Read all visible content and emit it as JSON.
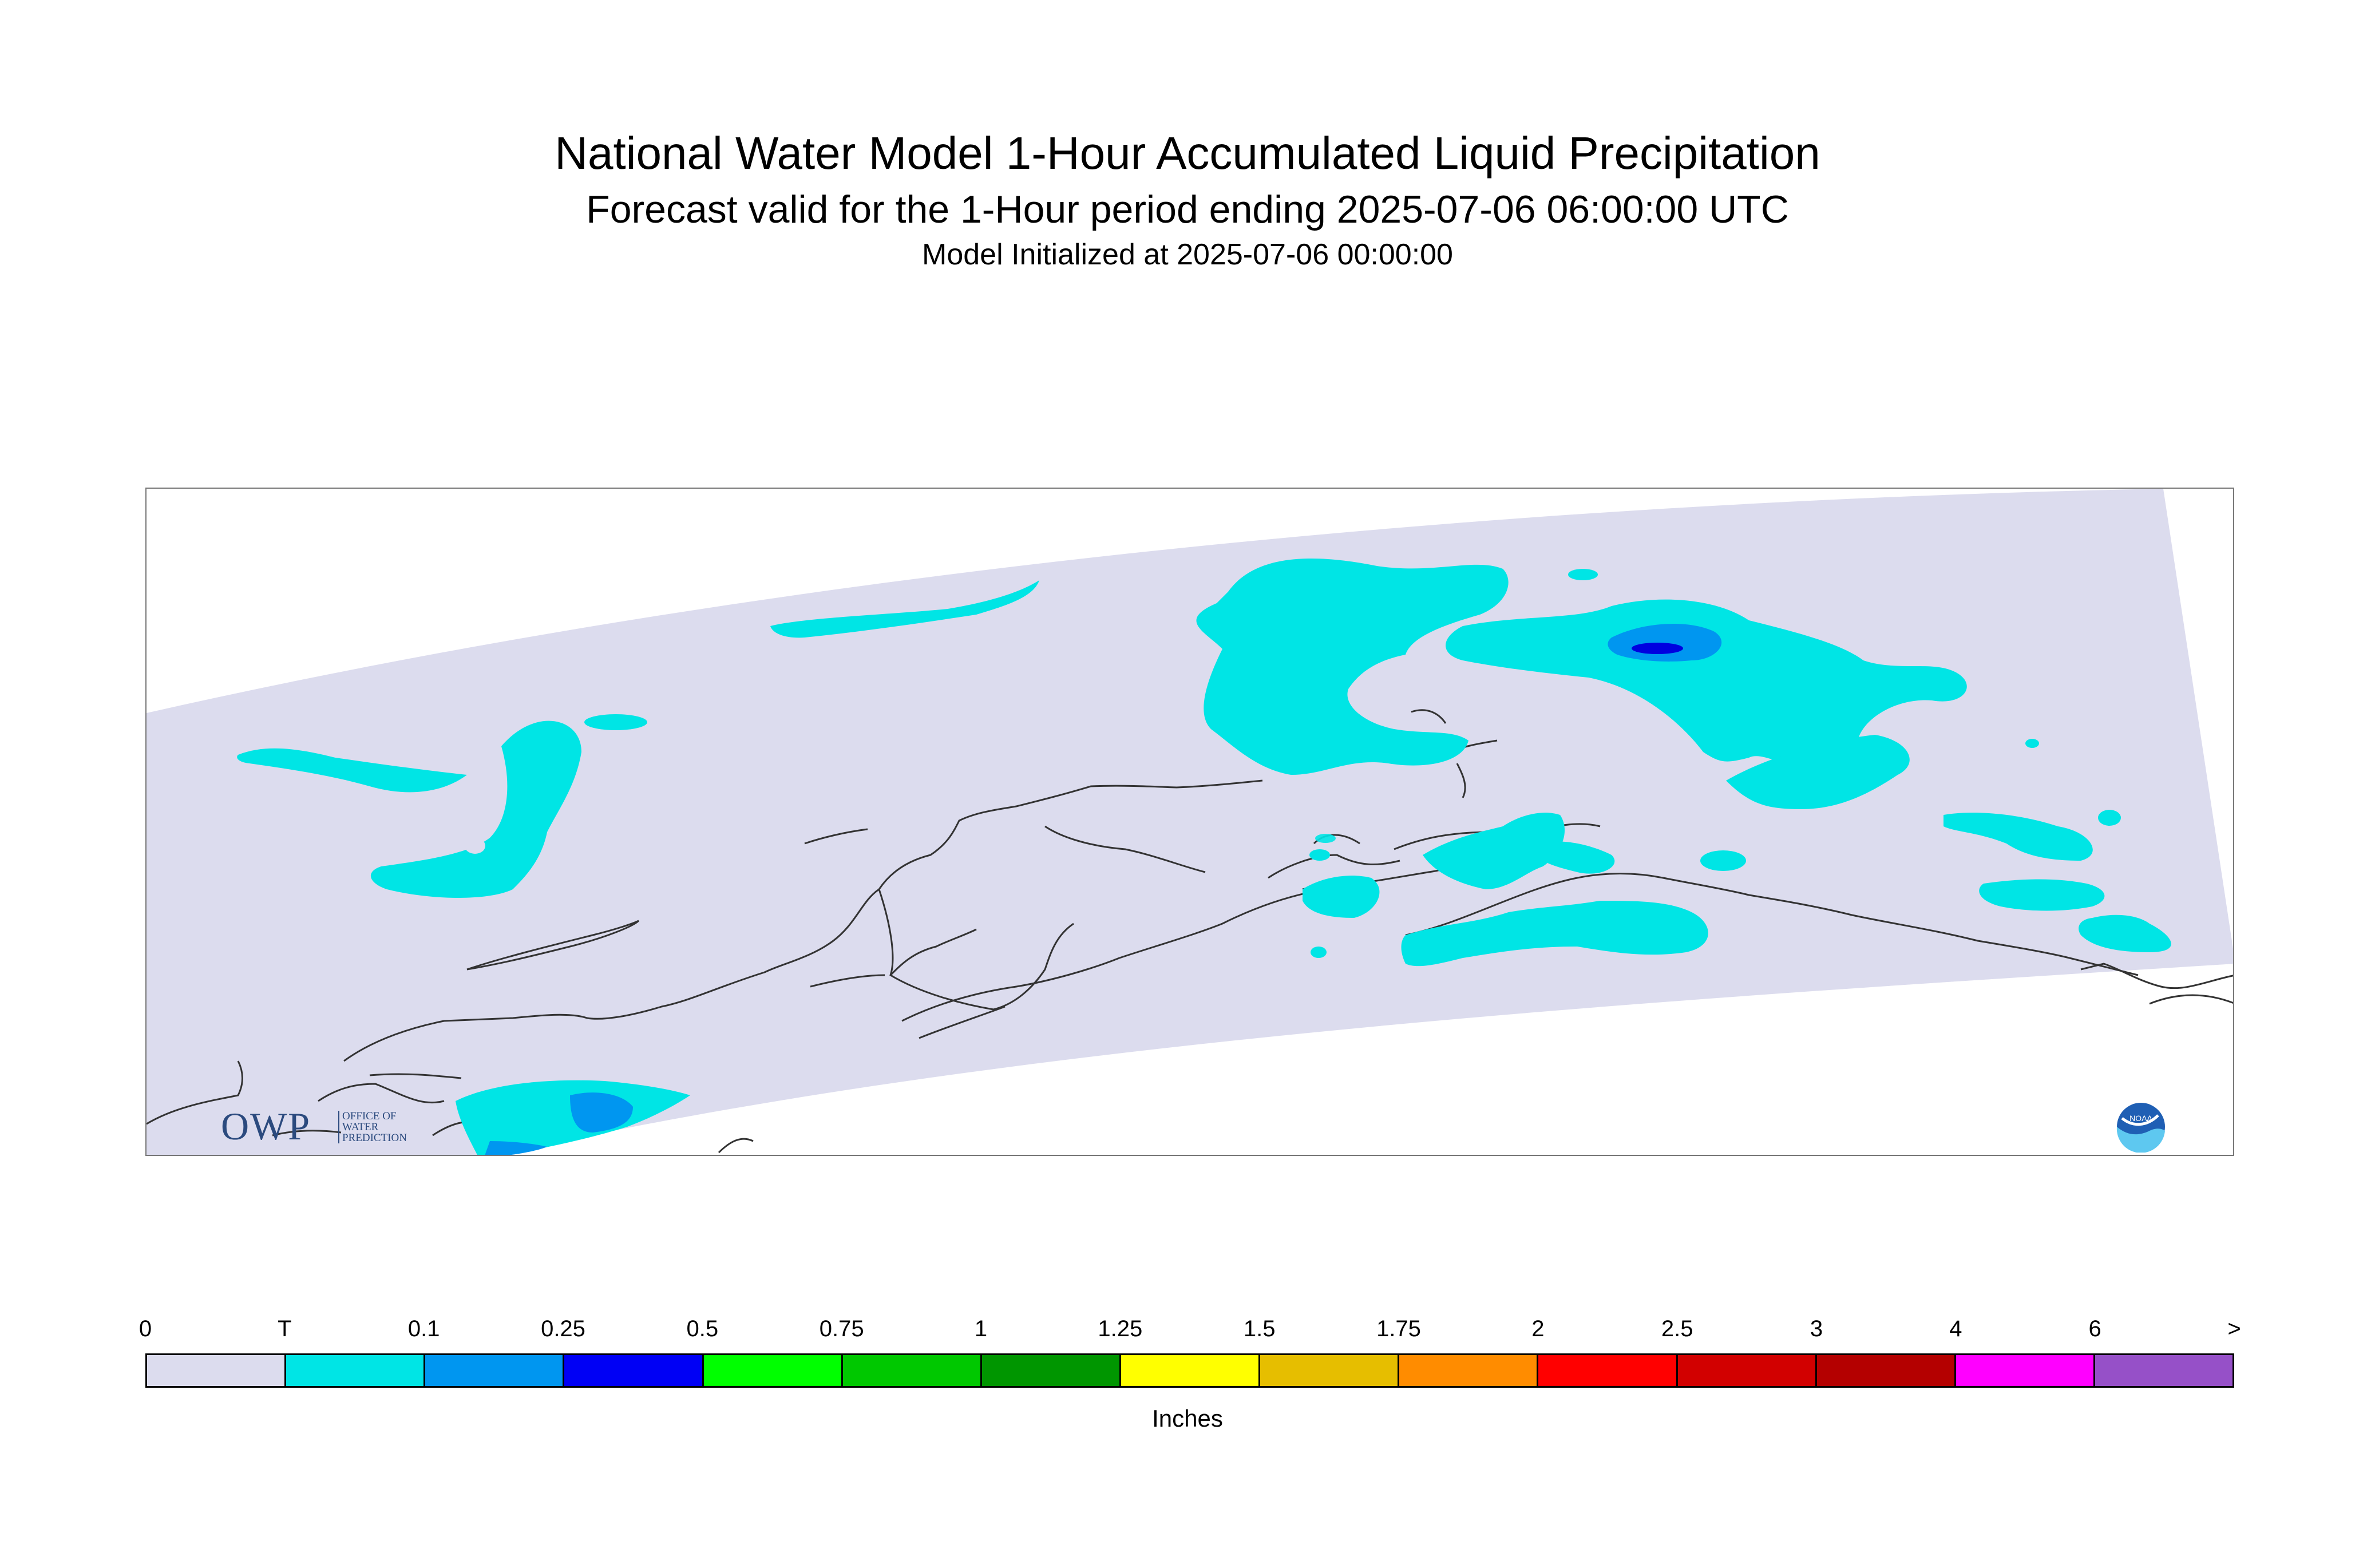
{
  "title": "National Water Model 1-Hour Accumulated Liquid Precipitation",
  "subtitle": "Forecast valid for the 1-Hour period ending 2025-07-06 06:00:00 UTC",
  "init_line": "Model Initialized at 2025-07-06 00:00:00",
  "logos": {
    "owp_text": "OWP",
    "owp_small": "OFFICE OF WATER PREDICTION",
    "noaa_text": "NOAA"
  },
  "colors": {
    "domain": "#dcdcee",
    "trace": "#00e5e5",
    "light_blue": "#0096f0",
    "dark_blue": "#0000e0",
    "coast": "#333333"
  },
  "legend": {
    "units": "Inches",
    "ticks": [
      "0",
      "T",
      "0.1",
      "0.25",
      "0.5",
      "0.75",
      "1",
      "1.25",
      "1.5",
      "1.75",
      "2",
      "2.5",
      "3",
      "4",
      "6",
      ">"
    ],
    "bins": [
      {
        "color": "#dcdcee"
      },
      {
        "color": "#00e5e5"
      },
      {
        "color": "#0096f0"
      },
      {
        "color": "#0000f5"
      },
      {
        "color": "#00ff00"
      },
      {
        "color": "#00c800"
      },
      {
        "color": "#009600"
      },
      {
        "color": "#ffff00"
      },
      {
        "color": "#e6be00"
      },
      {
        "color": "#ff8c00"
      },
      {
        "color": "#ff0000"
      },
      {
        "color": "#d20000"
      },
      {
        "color": "#b40000"
      },
      {
        "color": "#ff00ff"
      },
      {
        "color": "#9650c8"
      }
    ]
  }
}
